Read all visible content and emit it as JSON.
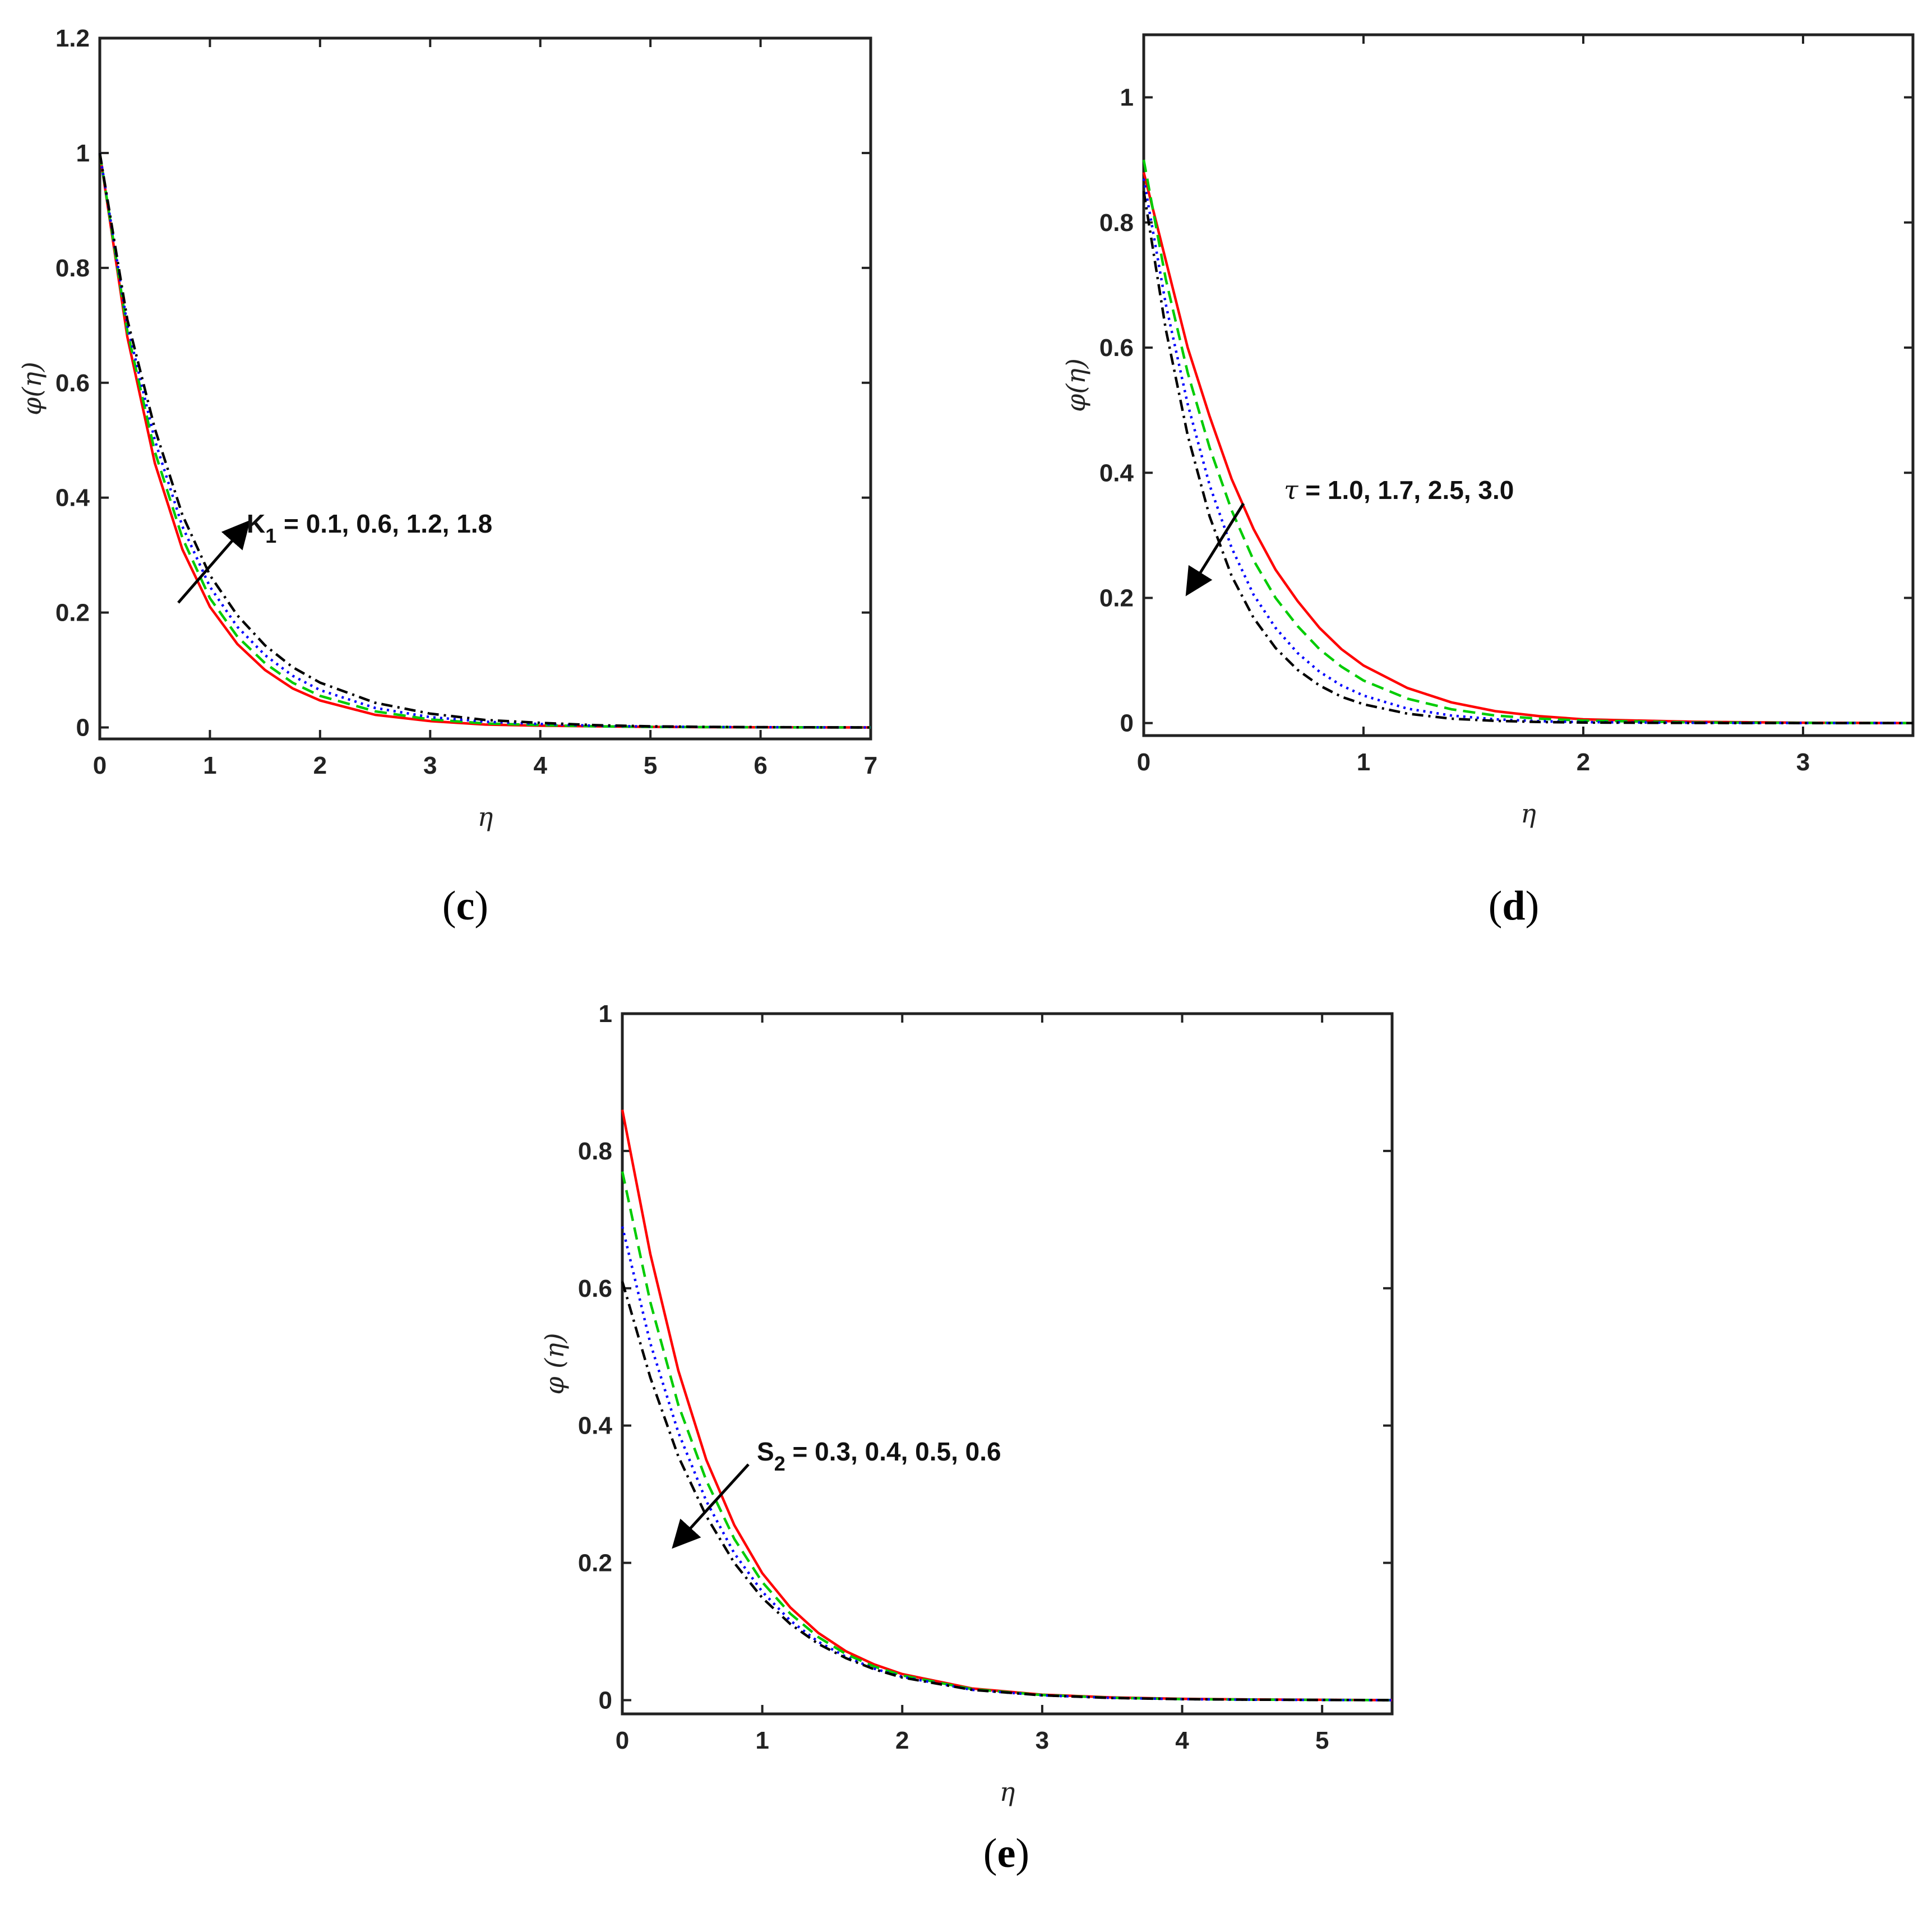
{
  "chart_data": [
    {
      "type": "line",
      "panel": "c",
      "caption_letter": "c",
      "xlabel": "η",
      "ylabel": "φ(η)",
      "xlim": [
        0,
        7
      ],
      "ylim": [
        -0.02,
        1.2
      ],
      "xticks": [
        "0",
        "1",
        "2",
        "3",
        "4",
        "5",
        "6",
        "7"
      ],
      "yticks": [
        "0",
        "0.2",
        "0.4",
        "0.6",
        "0.8",
        "1",
        "1.2"
      ],
      "annotation": {
        "symbol": "K",
        "subscript": "1",
        "text": " = 0.1, 0.6, 1.2, 1.8",
        "arrow": "up"
      },
      "x": [
        0,
        0.25,
        0.5,
        0.75,
        1,
        1.25,
        1.5,
        1.75,
        2,
        2.5,
        3,
        3.5,
        4,
        4.5,
        5,
        5.5,
        6,
        6.5,
        7
      ],
      "series": [
        {
          "color": "#ff0000",
          "dash": "solid",
          "values": [
            1,
            0.68,
            0.46,
            0.31,
            0.21,
            0.145,
            0.1,
            0.068,
            0.047,
            0.022,
            0.011,
            0.005,
            0.003,
            0.002,
            0.001,
            0.0005,
            0.0003,
            0.0001,
            0
          ]
        },
        {
          "color": "#00cc00",
          "dash": "dashed",
          "values": [
            1,
            0.69,
            0.48,
            0.33,
            0.225,
            0.158,
            0.112,
            0.078,
            0.055,
            0.028,
            0.014,
            0.007,
            0.004,
            0.002,
            0.001,
            0.0006,
            0.0003,
            0.0001,
            0
          ]
        },
        {
          "color": "#0000ff",
          "dash": "dotted",
          "values": [
            1,
            0.7,
            0.5,
            0.35,
            0.245,
            0.175,
            0.126,
            0.09,
            0.065,
            0.034,
            0.018,
            0.01,
            0.006,
            0.003,
            0.0015,
            0.0008,
            0.0004,
            0.0002,
            0
          ]
        },
        {
          "color": "#000000",
          "dash": "dashdot",
          "values": [
            1,
            0.71,
            0.52,
            0.37,
            0.265,
            0.195,
            0.143,
            0.105,
            0.078,
            0.043,
            0.024,
            0.013,
            0.008,
            0.004,
            0.002,
            0.001,
            0.0005,
            0.0002,
            0
          ]
        }
      ]
    },
    {
      "type": "line",
      "panel": "d",
      "caption_letter": "d",
      "xlabel": "η",
      "ylabel": "φ(η)",
      "xlim": [
        0,
        3.5
      ],
      "ylim": [
        -0.02,
        1.1
      ],
      "xticks": [
        "0",
        "1",
        "2",
        "3"
      ],
      "yticks": [
        "0",
        "0.2",
        "0.4",
        "0.6",
        "0.8",
        "1"
      ],
      "annotation": {
        "symbol": "τ",
        "subscript": "",
        "text": " = 1.0, 1.7, 2.5, 3.0",
        "arrow": "down"
      },
      "x": [
        0,
        0.1,
        0.2,
        0.3,
        0.4,
        0.5,
        0.6,
        0.7,
        0.8,
        0.9,
        1.0,
        1.2,
        1.4,
        1.6,
        1.8,
        2.0,
        2.5,
        3.0,
        3.5
      ],
      "series": [
        {
          "color": "#ff0000",
          "dash": "solid",
          "values": [
            0.88,
            0.74,
            0.6,
            0.49,
            0.39,
            0.31,
            0.245,
            0.195,
            0.152,
            0.118,
            0.092,
            0.056,
            0.033,
            0.019,
            0.011,
            0.006,
            0.002,
            0.0005,
            0
          ]
        },
        {
          "color": "#00cc00",
          "dash": "dashed",
          "values": [
            0.9,
            0.71,
            0.56,
            0.44,
            0.34,
            0.26,
            0.2,
            0.155,
            0.118,
            0.09,
            0.068,
            0.039,
            0.022,
            0.012,
            0.007,
            0.004,
            0.001,
            0.0003,
            0
          ]
        },
        {
          "color": "#0000ff",
          "dash": "dotted",
          "values": [
            0.87,
            0.67,
            0.51,
            0.38,
            0.28,
            0.205,
            0.152,
            0.112,
            0.082,
            0.06,
            0.044,
            0.023,
            0.012,
            0.006,
            0.003,
            0.0015,
            0.0004,
            0.0001,
            0
          ]
        },
        {
          "color": "#000000",
          "dash": "dashdot",
          "values": [
            0.85,
            0.63,
            0.46,
            0.33,
            0.235,
            0.168,
            0.12,
            0.085,
            0.06,
            0.042,
            0.03,
            0.015,
            0.007,
            0.0035,
            0.0017,
            0.0008,
            0.0002,
            0,
            0
          ]
        }
      ]
    },
    {
      "type": "line",
      "panel": "e",
      "caption_letter": "e",
      "xlabel": "η",
      "ylabel": "φ (η)",
      "xlim": [
        0,
        5.5
      ],
      "ylim": [
        -0.02,
        1.0
      ],
      "xticks": [
        "0",
        "1",
        "2",
        "3",
        "4",
        "5"
      ],
      "yticks": [
        "0",
        "0.2",
        "0.4",
        "0.6",
        "0.8",
        "1"
      ],
      "annotation": {
        "symbol": "S",
        "subscript": "2",
        "text": " = 0.3, 0.4, 0.5, 0.6",
        "arrow": "down"
      },
      "x": [
        0,
        0.2,
        0.4,
        0.6,
        0.8,
        1.0,
        1.2,
        1.4,
        1.6,
        1.8,
        2.0,
        2.5,
        3.0,
        3.5,
        4.0,
        4.5,
        5.0,
        5.5
      ],
      "series": [
        {
          "color": "#ff0000",
          "dash": "solid",
          "values": [
            0.86,
            0.65,
            0.48,
            0.35,
            0.255,
            0.185,
            0.135,
            0.098,
            0.071,
            0.052,
            0.038,
            0.017,
            0.008,
            0.004,
            0.002,
            0.001,
            0.0005,
            0
          ]
        },
        {
          "color": "#00cc00",
          "dash": "dashed",
          "values": [
            0.77,
            0.58,
            0.43,
            0.32,
            0.235,
            0.172,
            0.126,
            0.092,
            0.067,
            0.049,
            0.036,
            0.016,
            0.0075,
            0.0035,
            0.0016,
            0.0008,
            0.0004,
            0
          ]
        },
        {
          "color": "#0000ff",
          "dash": "dotted",
          "values": [
            0.69,
            0.52,
            0.39,
            0.29,
            0.214,
            0.158,
            0.116,
            0.085,
            0.063,
            0.046,
            0.034,
            0.015,
            0.007,
            0.0033,
            0.0015,
            0.0007,
            0.0003,
            0
          ]
        },
        {
          "color": "#000000",
          "dash": "dashdot",
          "values": [
            0.61,
            0.47,
            0.355,
            0.268,
            0.2,
            0.149,
            0.111,
            0.082,
            0.061,
            0.045,
            0.033,
            0.015,
            0.007,
            0.0032,
            0.0015,
            0.0007,
            0.0003,
            0
          ]
        }
      ]
    }
  ]
}
